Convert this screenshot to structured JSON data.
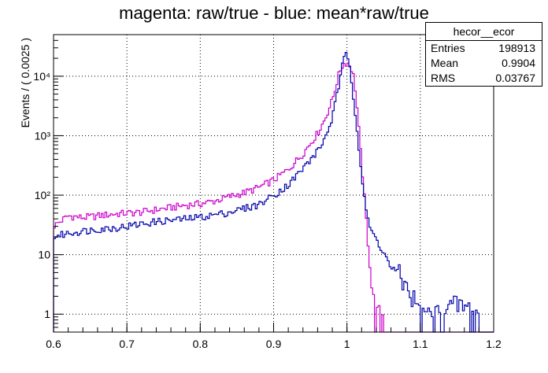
{
  "chart_data": {
    "type": "line",
    "title": "magenta: raw/true - blue: mean*raw/true",
    "xlabel": "",
    "ylabel": "Events / ( 0.0025 )",
    "xlim": [
      0.6,
      1.2
    ],
    "ylim": [
      0.5,
      50000
    ],
    "yscale": "log",
    "grid": true,
    "x_ticks": [
      0.6,
      0.7,
      0.8,
      0.9,
      1,
      1.1,
      1.2
    ],
    "x_tick_labels": [
      "0.6",
      "0.7",
      "0.8",
      "0.9",
      "1",
      "1.1",
      "1.2"
    ],
    "y_ticks": [
      1,
      10,
      100,
      1000,
      10000
    ],
    "y_tick_labels": [
      "1",
      "10",
      "10²",
      "10³",
      "10⁴"
    ],
    "bin_width": 0.0025,
    "series": [
      {
        "color": "#cc00cc",
        "points": [
          [
            0.6,
            30
          ],
          [
            0.62,
            45
          ],
          [
            0.64,
            42
          ],
          [
            0.66,
            45
          ],
          [
            0.68,
            48
          ],
          [
            0.7,
            50
          ],
          [
            0.72,
            52
          ],
          [
            0.74,
            57
          ],
          [
            0.76,
            62
          ],
          [
            0.78,
            68
          ],
          [
            0.8,
            72
          ],
          [
            0.82,
            80
          ],
          [
            0.84,
            95
          ],
          [
            0.86,
            110
          ],
          [
            0.88,
            135
          ],
          [
            0.9,
            180
          ],
          [
            0.92,
            270
          ],
          [
            0.94,
            500
          ],
          [
            0.96,
            1100
          ],
          [
            0.97,
            1900
          ],
          [
            0.98,
            4000
          ],
          [
            0.99,
            12000
          ],
          [
            0.995,
            16000
          ],
          [
            1.0,
            17000
          ],
          [
            1.005,
            15000
          ],
          [
            1.01,
            9000
          ],
          [
            1.015,
            2000
          ],
          [
            1.02,
            350
          ],
          [
            1.025,
            60
          ],
          [
            1.03,
            10
          ],
          [
            1.035,
            2
          ],
          [
            1.04,
            1
          ],
          [
            1.05,
            1
          ]
        ]
      },
      {
        "color": "#0000aa",
        "points": [
          [
            0.6,
            20
          ],
          [
            0.62,
            23
          ],
          [
            0.64,
            25
          ],
          [
            0.66,
            27
          ],
          [
            0.68,
            28
          ],
          [
            0.7,
            30
          ],
          [
            0.72,
            33
          ],
          [
            0.74,
            36
          ],
          [
            0.76,
            38
          ],
          [
            0.78,
            40
          ],
          [
            0.8,
            43
          ],
          [
            0.82,
            47
          ],
          [
            0.84,
            52
          ],
          [
            0.86,
            60
          ],
          [
            0.88,
            70
          ],
          [
            0.9,
            100
          ],
          [
            0.92,
            150
          ],
          [
            0.94,
            280
          ],
          [
            0.96,
            550
          ],
          [
            0.97,
            900
          ],
          [
            0.98,
            2000
          ],
          [
            0.99,
            8000
          ],
          [
            0.995,
            18000
          ],
          [
            1.0,
            26000
          ],
          [
            1.005,
            12000
          ],
          [
            1.01,
            3500
          ],
          [
            1.015,
            900
          ],
          [
            1.02,
            220
          ],
          [
            1.025,
            70
          ],
          [
            1.03,
            30
          ],
          [
            1.04,
            18
          ],
          [
            1.05,
            11
          ],
          [
            1.06,
            6
          ],
          [
            1.07,
            5
          ],
          [
            1.08,
            3
          ],
          [
            1.09,
            2
          ],
          [
            1.1,
            1
          ],
          [
            1.12,
            1
          ],
          [
            1.15,
            1.5
          ],
          [
            1.18,
            1
          ]
        ]
      }
    ]
  },
  "stats": {
    "name": "hecor__ecor",
    "rows": [
      {
        "label": "Entries",
        "value": "198913"
      },
      {
        "label": "Mean",
        "value": "0.9904"
      },
      {
        "label": "RMS",
        "value": "0.03767"
      }
    ]
  }
}
